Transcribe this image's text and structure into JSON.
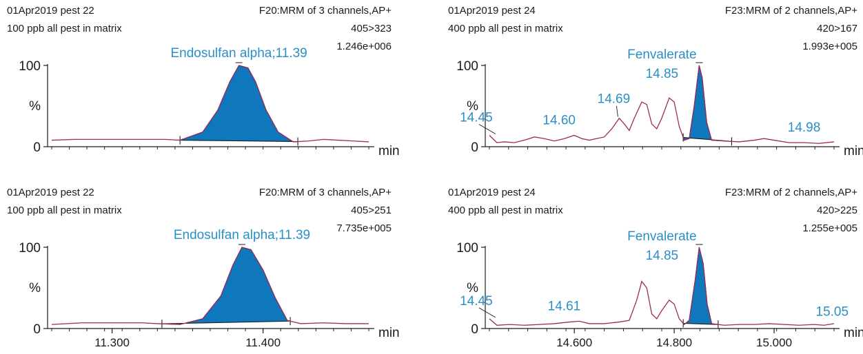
{
  "chart_data": [
    {
      "type": "line",
      "id": "tl",
      "header": {
        "sample": "01Apr2019 pest 22",
        "description": "100 ppb all pest in matrix",
        "function": "F20:MRM of 3 channels,AP+",
        "transition": "405>323",
        "intensity": "1.246e+006"
      },
      "y_ticks": [
        "100",
        "%",
        "0"
      ],
      "x_unit": "min",
      "x_range": [
        11.26,
        11.47
      ],
      "x_ticks": [],
      "ylim": [
        0,
        100
      ],
      "trace": [
        [
          11.26,
          8
        ],
        [
          11.275,
          9
        ],
        [
          11.3,
          9
        ],
        [
          11.32,
          9
        ],
        [
          11.335,
          9
        ],
        [
          11.345,
          8
        ],
        [
          11.36,
          18
        ],
        [
          11.37,
          45
        ],
        [
          11.378,
          80
        ],
        [
          11.384,
          100
        ],
        [
          11.39,
          97
        ],
        [
          11.395,
          80
        ],
        [
          11.402,
          45
        ],
        [
          11.41,
          18
        ],
        [
          11.42,
          6
        ],
        [
          11.43,
          7
        ],
        [
          11.44,
          9
        ],
        [
          11.45,
          8
        ],
        [
          11.46,
          7
        ],
        [
          11.47,
          6
        ]
      ],
      "peak_window": [
        11.345,
        11.423
      ],
      "peaks": [
        {
          "label": "Endosulfan alpha;11.39",
          "x": 11.384,
          "y": 100
        }
      ]
    },
    {
      "type": "line",
      "id": "tr",
      "header": {
        "sample": "01Apr2019 pest 24",
        "description": "400 ppb all pest in matrix",
        "function": "F23:MRM of 2 channels,AP+",
        "transition": "420>167",
        "intensity": "1.993e+005"
      },
      "y_ticks": [
        "100",
        "%",
        "0"
      ],
      "x_unit": "min",
      "x_range": [
        14.43,
        15.12
      ],
      "x_ticks": [],
      "ylim": [
        0,
        100
      ],
      "trace": [
        [
          14.43,
          14
        ],
        [
          14.445,
          5
        ],
        [
          14.46,
          6
        ],
        [
          14.48,
          5
        ],
        [
          14.5,
          8
        ],
        [
          14.52,
          12
        ],
        [
          14.54,
          10
        ],
        [
          14.56,
          7
        ],
        [
          14.58,
          10
        ],
        [
          14.6,
          14
        ],
        [
          14.615,
          10
        ],
        [
          14.63,
          8
        ],
        [
          14.66,
          12
        ],
        [
          14.675,
          22
        ],
        [
          14.69,
          35
        ],
        [
          14.7,
          28
        ],
        [
          14.71,
          20
        ],
        [
          14.72,
          35
        ],
        [
          14.735,
          55
        ],
        [
          14.745,
          52
        ],
        [
          14.755,
          28
        ],
        [
          14.765,
          22
        ],
        [
          14.775,
          35
        ],
        [
          14.79,
          60
        ],
        [
          14.8,
          55
        ],
        [
          14.81,
          25
        ],
        [
          14.82,
          8
        ],
        [
          14.83,
          10
        ],
        [
          14.84,
          50
        ],
        [
          14.85,
          100
        ],
        [
          14.856,
          85
        ],
        [
          14.865,
          30
        ],
        [
          14.875,
          8
        ],
        [
          14.9,
          7
        ],
        [
          14.93,
          6
        ],
        [
          14.96,
          8
        ],
        [
          14.98,
          10
        ],
        [
          15.0,
          8
        ],
        [
          15.03,
          5
        ],
        [
          15.06,
          5
        ],
        [
          15.09,
          4
        ],
        [
          15.12,
          6
        ]
      ],
      "peak_window": [
        14.818,
        14.915
      ],
      "peaks": [
        {
          "label": "Fenvalerate",
          "x": 14.85,
          "y": 100
        },
        {
          "label": "14.85",
          "x": 14.85,
          "y": 100
        },
        {
          "label": "14.45",
          "x": 14.445,
          "y": 14
        },
        {
          "label": "14.60",
          "x": 14.6,
          "y": 14
        },
        {
          "label": "14.69",
          "x": 14.69,
          "y": 35
        },
        {
          "label": "14.98",
          "x": 14.98,
          "y": 10
        }
      ]
    },
    {
      "type": "line",
      "id": "bl",
      "header": {
        "sample": "01Apr2019 pest 22",
        "description": "100 ppb all pest in matrix",
        "function": "F20:MRM of 3 channels,AP+",
        "transition": "405>251",
        "intensity": "7.735e+005"
      },
      "y_ticks": [
        "100",
        "%",
        "0"
      ],
      "x_unit": "min",
      "x_range": [
        11.26,
        11.47
      ],
      "x_ticks": [
        "11.300",
        "11.400"
      ],
      "x_tick_values": [
        11.3,
        11.4
      ],
      "ylim": [
        0,
        100
      ],
      "trace": [
        [
          11.26,
          5
        ],
        [
          11.28,
          7
        ],
        [
          11.3,
          7
        ],
        [
          11.32,
          7
        ],
        [
          11.33,
          6
        ],
        [
          11.345,
          5
        ],
        [
          11.36,
          12
        ],
        [
          11.372,
          40
        ],
        [
          11.38,
          78
        ],
        [
          11.386,
          100
        ],
        [
          11.392,
          97
        ],
        [
          11.4,
          72
        ],
        [
          11.408,
          38
        ],
        [
          11.416,
          10
        ],
        [
          11.425,
          6
        ],
        [
          11.44,
          7
        ],
        [
          11.455,
          6
        ],
        [
          11.47,
          6
        ]
      ],
      "peak_window": [
        11.333,
        11.418
      ],
      "peaks": [
        {
          "label": "Endosulfan alpha;11.39",
          "x": 11.386,
          "y": 100
        }
      ]
    },
    {
      "type": "line",
      "id": "br",
      "header": {
        "sample": "01Apr2019 pest 24",
        "description": "400 ppb all pest in matrix",
        "function": "F23:MRM of 2 channels,AP+",
        "transition": "420>225",
        "intensity": "1.255e+005"
      },
      "y_ticks": [
        "100",
        "%",
        "0"
      ],
      "x_unit": "min",
      "x_range": [
        14.43,
        15.12
      ],
      "x_ticks": [
        "14.600",
        "14.800",
        "15.000"
      ],
      "x_tick_values": [
        14.6,
        14.8,
        15.0
      ],
      "ylim": [
        0,
        100
      ],
      "trace": [
        [
          14.43,
          12
        ],
        [
          14.445,
          4
        ],
        [
          14.47,
          5
        ],
        [
          14.5,
          4
        ],
        [
          14.53,
          5
        ],
        [
          14.56,
          6
        ],
        [
          14.59,
          8
        ],
        [
          14.61,
          9
        ],
        [
          14.63,
          6
        ],
        [
          14.66,
          6
        ],
        [
          14.69,
          8
        ],
        [
          14.71,
          10
        ],
        [
          14.725,
          35
        ],
        [
          14.735,
          58
        ],
        [
          14.745,
          50
        ],
        [
          14.755,
          18
        ],
        [
          14.765,
          12
        ],
        [
          14.775,
          22
        ],
        [
          14.79,
          35
        ],
        [
          14.8,
          30
        ],
        [
          14.81,
          12
        ],
        [
          14.82,
          5
        ],
        [
          14.83,
          10
        ],
        [
          14.842,
          60
        ],
        [
          14.85,
          100
        ],
        [
          14.858,
          80
        ],
        [
          14.866,
          30
        ],
        [
          14.875,
          6
        ],
        [
          14.9,
          4
        ],
        [
          14.93,
          5
        ],
        [
          14.96,
          5
        ],
        [
          14.99,
          6
        ],
        [
          15.02,
          5
        ],
        [
          15.05,
          4
        ],
        [
          15.08,
          5
        ],
        [
          15.1,
          4
        ],
        [
          15.12,
          6
        ]
      ],
      "peak_window": [
        14.818,
        14.888
      ],
      "peaks": [
        {
          "label": "Fenvalerate",
          "x": 14.85,
          "y": 100
        },
        {
          "label": "14.85",
          "x": 14.85,
          "y": 100
        },
        {
          "label": "14.45",
          "x": 14.445,
          "y": 12
        },
        {
          "label": "14.61",
          "x": 14.61,
          "y": 9
        },
        {
          "label": "15.05",
          "x": 15.05,
          "y": 4
        }
      ]
    }
  ],
  "colors": {
    "trace": "#9c2a5a",
    "fill": "#0f78bd",
    "outline": "#1a1a1a",
    "label": "#2a8fc6",
    "axis": "#1a1a1a"
  }
}
